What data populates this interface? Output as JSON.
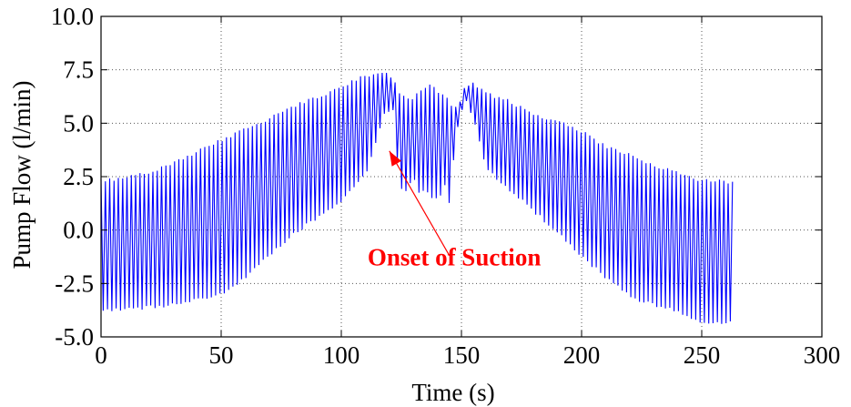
{
  "chart_data": {
    "type": "line",
    "title": "",
    "xlabel": "Time (s)",
    "ylabel": "Pump Flow (l/min)",
    "xlim": [
      0,
      300
    ],
    "ylim": [
      -5.0,
      10.0
    ],
    "x_ticks": [
      0,
      50,
      100,
      150,
      200,
      250,
      300
    ],
    "y_ticks": [
      -5.0,
      -2.5,
      0.0,
      2.5,
      5.0,
      7.5,
      10.0
    ],
    "x_tick_labels": [
      "0",
      "50",
      "100",
      "150",
      "200",
      "250",
      "300"
    ],
    "y_tick_labels": [
      "-5.0",
      "-2.5",
      "0.0",
      "2.5",
      "5.0",
      "7.5",
      "10.0"
    ],
    "grid": true,
    "line_color": "#0000ff",
    "series": [
      {
        "x_start": 0,
        "x_end": 263,
        "oscillation_period_s": 1.8,
        "envelope": {
          "x": [
            0,
            10,
            20,
            30,
            50,
            60,
            70,
            80,
            90,
            100,
            110,
            118,
            122,
            124,
            126,
            128,
            130,
            132,
            135,
            138,
            141,
            143,
            145,
            148,
            150,
            152,
            155,
            160,
            170,
            180,
            190,
            200,
            210,
            220,
            230,
            240,
            250,
            255,
            263
          ],
          "upper": [
            2.4,
            2.5,
            2.8,
            3.2,
            4.3,
            4.8,
            5.3,
            5.9,
            6.3,
            6.8,
            7.3,
            7.5,
            7.0,
            6.6,
            6.3,
            6.2,
            6.2,
            6.6,
            6.8,
            7.0,
            6.3,
            6.4,
            6.0,
            5.8,
            6.3,
            6.9,
            6.9,
            6.5,
            6.1,
            5.5,
            5.2,
            4.7,
            4.0,
            3.6,
            3.1,
            2.8,
            2.4,
            2.4,
            2.3
          ],
          "lower": [
            -3.8,
            -3.8,
            -3.7,
            -3.6,
            -3.1,
            -2.3,
            -1.3,
            -0.3,
            0.5,
            1.2,
            2.5,
            5.3,
            5.5,
            2.0,
            1.7,
            1.8,
            2.5,
            1.7,
            1.7,
            1.4,
            1.5,
            2.0,
            1.2,
            4.6,
            5.5,
            5.9,
            5.2,
            2.8,
            1.8,
            0.8,
            -0.2,
            -1.3,
            -2.3,
            -3.2,
            -3.6,
            -3.9,
            -4.4,
            -4.4,
            -4.4
          ]
        }
      }
    ]
  },
  "annotation": {
    "text": "Onset of Suction",
    "color": "#ff0000",
    "text_x": 147,
    "text_y": -1.65,
    "arrow_from": [
      145,
      -1.2
    ],
    "arrow_to": [
      120,
      3.7
    ]
  }
}
